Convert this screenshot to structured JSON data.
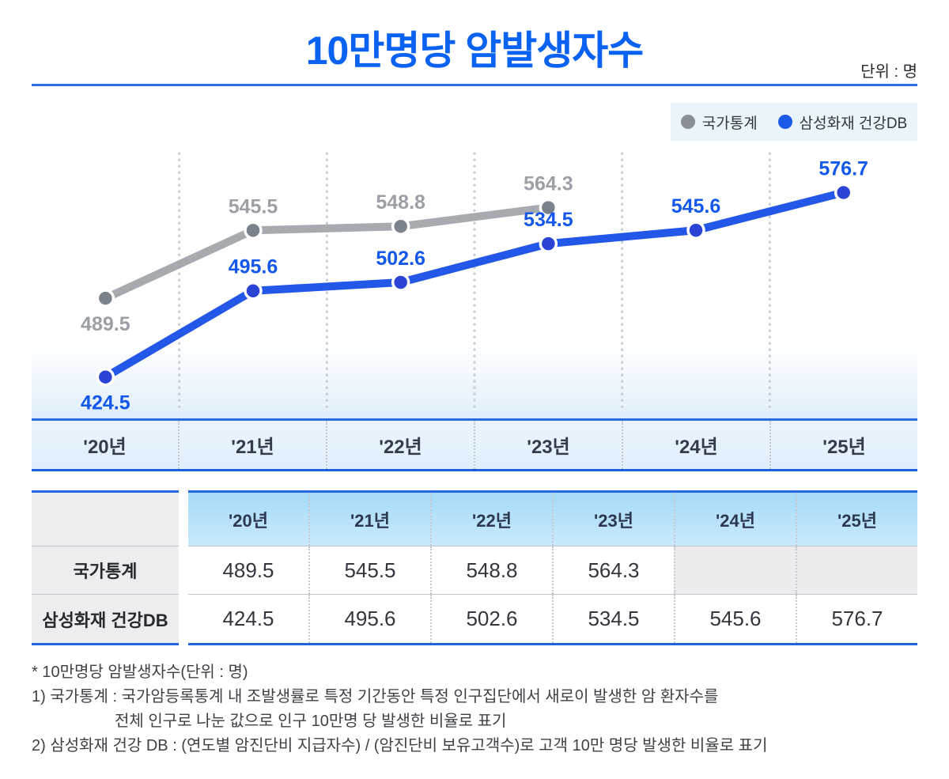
{
  "title": "10만명당 암발생자수",
  "unit_label": "단위 : 명",
  "legend": [
    {
      "label": "국가통계",
      "color": "#8A8F96"
    },
    {
      "label": "삼성화재 건강DB",
      "color": "#1B5BE8"
    }
  ],
  "chart_data": {
    "type": "line",
    "title": "10만명당 암발생자수",
    "unit": "명",
    "categories": [
      "'20년",
      "'21년",
      "'22년",
      "'23년",
      "'24년",
      "'25년"
    ],
    "series": [
      {
        "name": "국가통계",
        "values": [
          489.5,
          545.5,
          548.8,
          564.3,
          null,
          null
        ],
        "line_color": "#A7ABB0",
        "point_color": "#7C828B",
        "label_color": "#9CA0A6"
      },
      {
        "name": "삼성화재 건강DB",
        "values": [
          424.5,
          495.6,
          502.6,
          534.5,
          545.6,
          576.7
        ],
        "line_color": "#2357E8",
        "point_color": "#2B44D6",
        "label_color": "#1457EB"
      }
    ],
    "value_range": [
      408,
      592
    ],
    "grid": "vertical-dotted",
    "gridline_color": "#C8CCD2",
    "legend_position": "top-right",
    "accent_color": "#0A62F2"
  },
  "table": {
    "columns": [
      "'20년",
      "'21년",
      "'22년",
      "'23년",
      "'24년",
      "'25년"
    ],
    "rows": [
      {
        "label": "국가통계",
        "values": [
          "489.5",
          "545.5",
          "548.8",
          "564.3",
          "",
          ""
        ]
      },
      {
        "label": "삼성화재 건강DB",
        "values": [
          "424.5",
          "495.6",
          "502.6",
          "534.5",
          "545.6",
          "576.7"
        ]
      }
    ]
  },
  "footnotes": [
    "* 10만명당 암발생자수(단위 : 명)",
    "1) 국가통계 : 국가암등록통계 내 조발생률로 특정 기간동안 특정 인구집단에서 새로이 발생한 암 환자수를",
    "전체 인구로 나눈 값으로 인구 10만명 당 발생한 비율로 표기",
    "2) 삼성화재 건강 DB : (연도별 암진단비 지급자수) / (암진단비 보유고객수)로 고객 10만 명당 발생한 비율로 표기"
  ]
}
